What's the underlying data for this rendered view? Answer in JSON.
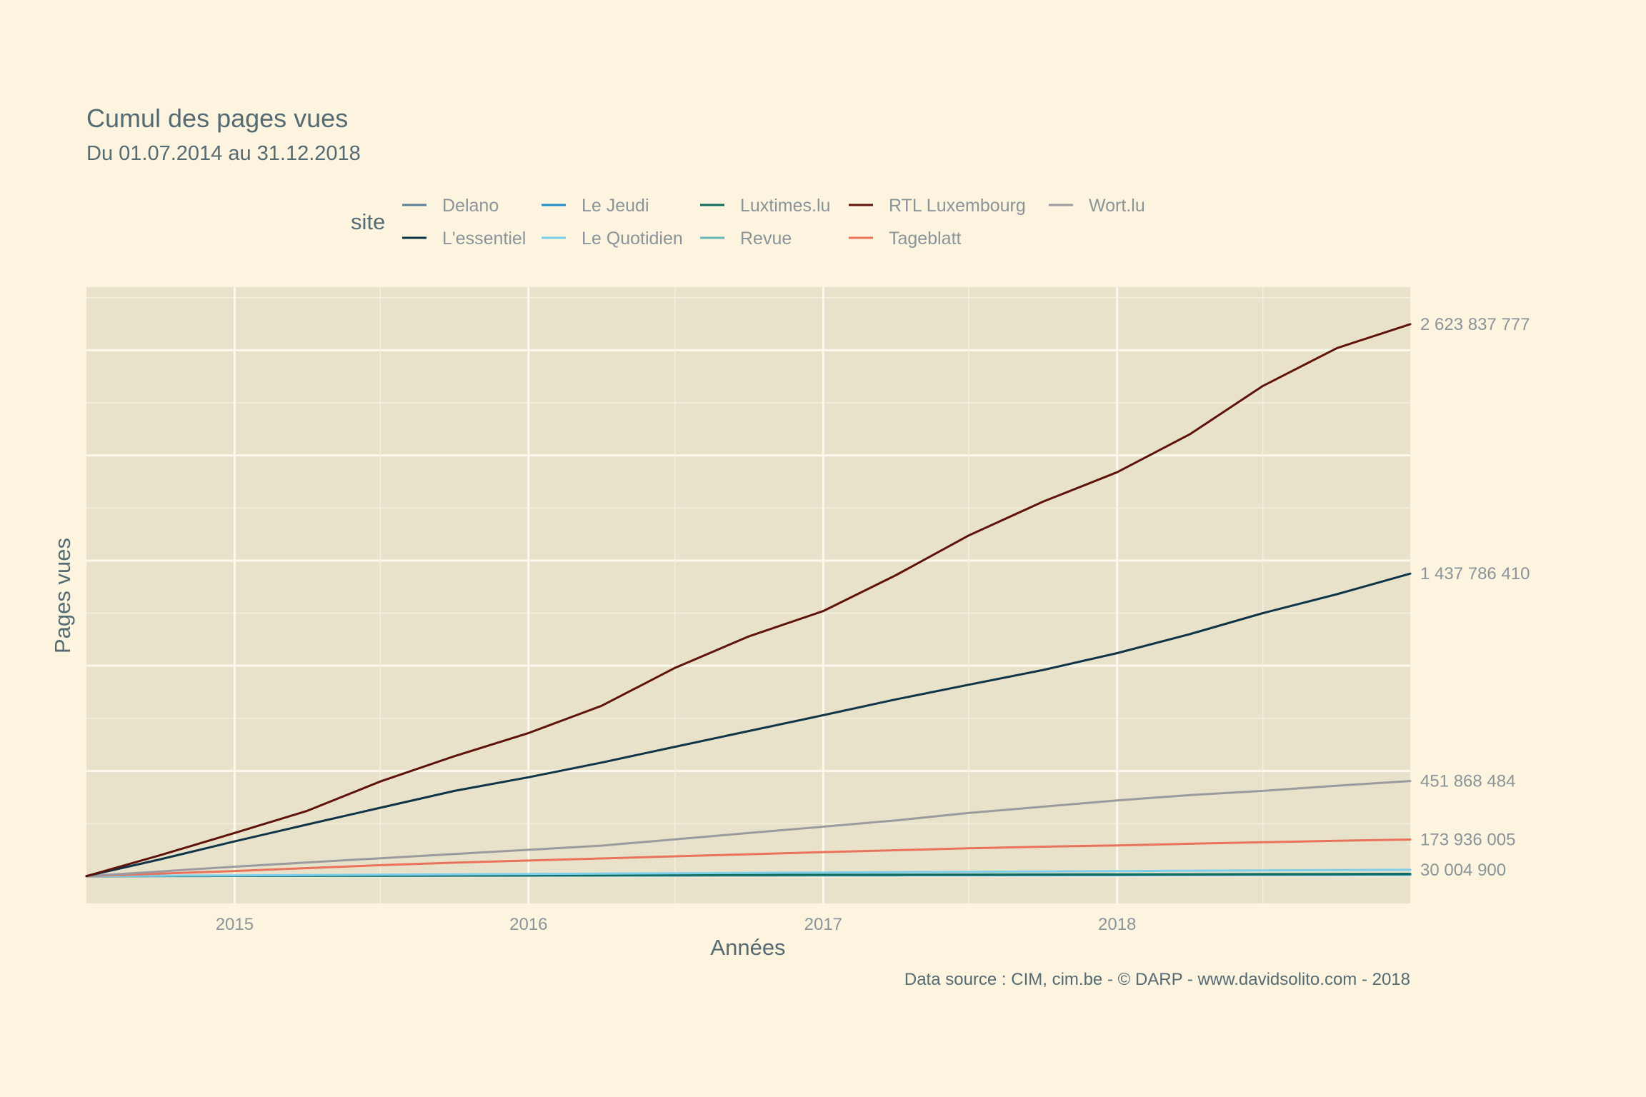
{
  "chart_data": {
    "type": "line",
    "title": "Cumul des pages vues",
    "subtitle": "Du 01.07.2014 au 31.12.2018",
    "xlabel": "Années",
    "ylabel": "Pages vues",
    "caption": "Data source : CIM, cim.be - © DARP - www.davidsolito.com - 2018",
    "legend_title": "site",
    "legend_position": "top",
    "x_range": [
      "2014-07-01",
      "2018-12-31"
    ],
    "y_range": [
      -130000000,
      2800000000
    ],
    "x_ticks": [
      {
        "date": "2015-01-01",
        "label": "2015"
      },
      {
        "date": "2016-01-01",
        "label": "2016"
      },
      {
        "date": "2017-01-01",
        "label": "2017"
      },
      {
        "date": "2018-01-01",
        "label": "2018"
      }
    ],
    "grid": true,
    "y_tick_labels_shown": false,
    "x": [
      "2014-07-01",
      "2014-10-01",
      "2015-01-01",
      "2015-04-01",
      "2015-07-01",
      "2015-10-01",
      "2016-01-01",
      "2016-04-01",
      "2016-07-01",
      "2016-10-01",
      "2017-01-01",
      "2017-04-01",
      "2017-07-01",
      "2017-10-01",
      "2018-01-01",
      "2018-04-01",
      "2018-07-01",
      "2018-10-01",
      "2018-12-31"
    ],
    "series": [
      {
        "name": "Delano",
        "color": "#5b7f95",
        "values": [
          0,
          300000,
          600000,
          900000,
          1200000,
          1500000,
          1800000,
          2100000,
          2400000,
          2700000,
          3000000,
          3300000,
          3600000,
          3900000,
          4200000,
          4500000,
          4800000,
          5100000,
          5400000
        ]
      },
      {
        "name": "L'essentiel",
        "color": "#0e3448",
        "values": [
          0,
          80000000,
          165000000,
          245000000,
          325000000,
          405000000,
          470000000,
          540000000,
          615000000,
          690000000,
          765000000,
          840000000,
          910000000,
          980000000,
          1060000000,
          1150000000,
          1250000000,
          1340000000,
          1437786410
        ]
      },
      {
        "name": "Le Jeudi",
        "color": "#1e8dc8",
        "values": [
          0,
          400000,
          800000,
          1200000,
          1600000,
          2000000,
          2400000,
          2800000,
          3200000,
          3600000,
          4000000,
          4400000,
          4800000,
          5200000,
          5600000,
          6000000,
          6400000,
          6800000,
          7200000
        ]
      },
      {
        "name": "Le Quotidien",
        "color": "#7ccfec",
        "values": [
          0,
          1700000,
          3400000,
          5100000,
          6800000,
          8500000,
          10200000,
          11900000,
          13600000,
          15300000,
          17000000,
          18700000,
          20400000,
          22100000,
          23800000,
          25500000,
          27200000,
          28600000,
          30004900
        ]
      },
      {
        "name": "Luxtimes.lu",
        "color": "#0e6b5d",
        "values": [
          0,
          600000,
          1200000,
          1800000,
          2400000,
          3000000,
          3600000,
          4200000,
          4800000,
          5400000,
          6000000,
          6600000,
          7200000,
          7800000,
          8400000,
          9000000,
          9600000,
          10200000,
          10800000
        ]
      },
      {
        "name": "Revue",
        "color": "#66b8b5",
        "values": [
          0,
          500000,
          1000000,
          1500000,
          2000000,
          2500000,
          3000000,
          3500000,
          4000000,
          4500000,
          5000000,
          5500000,
          6000000,
          6500000,
          7000000,
          7500000,
          8000000,
          8500000,
          9000000
        ]
      },
      {
        "name": "RTL Luxembourg",
        "color": "#5e1208",
        "values": [
          0,
          100000000,
          205000000,
          310000000,
          450000000,
          570000000,
          680000000,
          810000000,
          990000000,
          1140000000,
          1260000000,
          1430000000,
          1620000000,
          1780000000,
          1920000000,
          2100000000,
          2330000000,
          2510000000,
          2623837777
        ]
      },
      {
        "name": "Tageblatt",
        "color": "#e8735a",
        "values": [
          0,
          12000000,
          24000000,
          38000000,
          52000000,
          64000000,
          74000000,
          84000000,
          94000000,
          104000000,
          114000000,
          123000000,
          132000000,
          140000000,
          146000000,
          154000000,
          161000000,
          168000000,
          173936005
        ]
      },
      {
        "name": "Wort.lu",
        "color": "#9b9b9f",
        "values": [
          0,
          22000000,
          45000000,
          65000000,
          85000000,
          105000000,
          125000000,
          145000000,
          175000000,
          205000000,
          235000000,
          265000000,
          300000000,
          330000000,
          360000000,
          385000000,
          405000000,
          430000000,
          451868484
        ]
      }
    ],
    "end_labels": [
      {
        "series": "RTL Luxembourg",
        "value": 2623837777,
        "text": "2 623 837 777"
      },
      {
        "series": "L'essentiel",
        "value": 1437786410,
        "text": "1 437 786 410"
      },
      {
        "series": "Wort.lu",
        "value": 451868484,
        "text": "451 868 484"
      },
      {
        "series": "Tageblatt",
        "value": 173936005,
        "text": "173 936 005"
      },
      {
        "series": "Le Quotidien",
        "value": 30004900,
        "text": "30 004 900"
      }
    ]
  }
}
